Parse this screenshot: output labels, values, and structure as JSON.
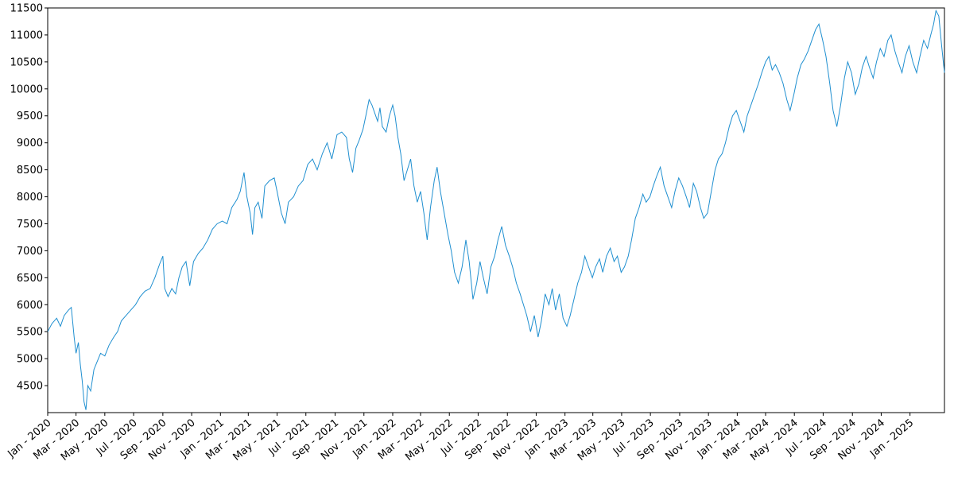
{
  "chart_data": {
    "type": "line",
    "title": "",
    "xlabel": "",
    "ylabel": "",
    "x_range": [
      "2020-01-01",
      "2025-03-15"
    ],
    "ylim": [
      4000,
      11500
    ],
    "y_ticks": [
      4500,
      5000,
      5500,
      6000,
      6500,
      7000,
      7500,
      8000,
      8500,
      9000,
      9500,
      10000,
      10500,
      11000,
      11500
    ],
    "x_ticks": [
      {
        "date": "2020-01-01",
        "label": "Jan - 2020"
      },
      {
        "date": "2020-03-01",
        "label": "Mar - 2020"
      },
      {
        "date": "2020-05-01",
        "label": "May - 2020"
      },
      {
        "date": "2020-07-01",
        "label": "Jul - 2020"
      },
      {
        "date": "2020-09-01",
        "label": "Sep - 2020"
      },
      {
        "date": "2020-11-01",
        "label": "Nov - 2020"
      },
      {
        "date": "2021-01-01",
        "label": "Jan - 2021"
      },
      {
        "date": "2021-03-01",
        "label": "Mar - 2021"
      },
      {
        "date": "2021-05-01",
        "label": "May - 2021"
      },
      {
        "date": "2021-07-01",
        "label": "Jul - 2021"
      },
      {
        "date": "2021-09-01",
        "label": "Sep - 2021"
      },
      {
        "date": "2021-11-01",
        "label": "Nov - 2021"
      },
      {
        "date": "2022-01-01",
        "label": "Jan - 2022"
      },
      {
        "date": "2022-03-01",
        "label": "Mar - 2022"
      },
      {
        "date": "2022-05-01",
        "label": "May - 2022"
      },
      {
        "date": "2022-07-01",
        "label": "Jul - 2022"
      },
      {
        "date": "2022-09-01",
        "label": "Sep - 2022"
      },
      {
        "date": "2022-11-01",
        "label": "Nov - 2022"
      },
      {
        "date": "2023-01-01",
        "label": "Jan - 2023"
      },
      {
        "date": "2023-03-01",
        "label": "Mar - 2023"
      },
      {
        "date": "2023-05-01",
        "label": "May - 2023"
      },
      {
        "date": "2023-07-01",
        "label": "Jul - 2023"
      },
      {
        "date": "2023-09-01",
        "label": "Sep - 2023"
      },
      {
        "date": "2023-11-01",
        "label": "Nov - 2023"
      },
      {
        "date": "2024-01-01",
        "label": "Jan - 2024"
      },
      {
        "date": "2024-03-01",
        "label": "Mar - 2024"
      },
      {
        "date": "2024-05-01",
        "label": "May - 2024"
      },
      {
        "date": "2024-07-01",
        "label": "Jul - 2024"
      },
      {
        "date": "2024-09-01",
        "label": "Sep - 2024"
      },
      {
        "date": "2024-11-01",
        "label": "Nov - 2024"
      },
      {
        "date": "2025-01-01",
        "label": "Jan - 2025"
      }
    ],
    "grid": false,
    "legend": "none",
    "line_color": "#1f8fd0",
    "series": [
      {
        "points": [
          [
            "2020-01-01",
            5500
          ],
          [
            "2020-01-10",
            5650
          ],
          [
            "2020-01-20",
            5750
          ],
          [
            "2020-01-28",
            5600
          ],
          [
            "2020-02-05",
            5800
          ],
          [
            "2020-02-14",
            5900
          ],
          [
            "2020-02-20",
            5950
          ],
          [
            "2020-02-26",
            5400
          ],
          [
            "2020-03-01",
            5100
          ],
          [
            "2020-03-06",
            5300
          ],
          [
            "2020-03-10",
            4900
          ],
          [
            "2020-03-14",
            4600
          ],
          [
            "2020-03-18",
            4200
          ],
          [
            "2020-03-22",
            4050
          ],
          [
            "2020-03-26",
            4500
          ],
          [
            "2020-04-01",
            4400
          ],
          [
            "2020-04-08",
            4800
          ],
          [
            "2020-04-15",
            4950
          ],
          [
            "2020-04-22",
            5100
          ],
          [
            "2020-05-01",
            5050
          ],
          [
            "2020-05-10",
            5250
          ],
          [
            "2020-05-20",
            5400
          ],
          [
            "2020-05-28",
            5500
          ],
          [
            "2020-06-05",
            5700
          ],
          [
            "2020-06-15",
            5800
          ],
          [
            "2020-06-25",
            5900
          ],
          [
            "2020-07-05",
            6000
          ],
          [
            "2020-07-15",
            6150
          ],
          [
            "2020-07-25",
            6250
          ],
          [
            "2020-08-05",
            6300
          ],
          [
            "2020-08-15",
            6500
          ],
          [
            "2020-08-25",
            6750
          ],
          [
            "2020-09-01",
            6900
          ],
          [
            "2020-09-05",
            6300
          ],
          [
            "2020-09-12",
            6150
          ],
          [
            "2020-09-20",
            6300
          ],
          [
            "2020-09-28",
            6200
          ],
          [
            "2020-10-05",
            6500
          ],
          [
            "2020-10-12",
            6700
          ],
          [
            "2020-10-20",
            6800
          ],
          [
            "2020-10-28",
            6350
          ],
          [
            "2020-11-05",
            6800
          ],
          [
            "2020-11-15",
            6950
          ],
          [
            "2020-11-25",
            7050
          ],
          [
            "2020-12-05",
            7200
          ],
          [
            "2020-12-15",
            7400
          ],
          [
            "2020-12-25",
            7500
          ],
          [
            "2021-01-05",
            7550
          ],
          [
            "2021-01-15",
            7500
          ],
          [
            "2021-01-25",
            7800
          ],
          [
            "2021-02-05",
            7950
          ],
          [
            "2021-02-12",
            8100
          ],
          [
            "2021-02-20",
            8450
          ],
          [
            "2021-02-26",
            8000
          ],
          [
            "2021-03-05",
            7700
          ],
          [
            "2021-03-10",
            7300
          ],
          [
            "2021-03-15",
            7800
          ],
          [
            "2021-03-22",
            7900
          ],
          [
            "2021-03-30",
            7600
          ],
          [
            "2021-04-05",
            8200
          ],
          [
            "2021-04-15",
            8300
          ],
          [
            "2021-04-25",
            8350
          ],
          [
            "2021-05-01",
            8100
          ],
          [
            "2021-05-10",
            7700
          ],
          [
            "2021-05-18",
            7500
          ],
          [
            "2021-05-25",
            7900
          ],
          [
            "2021-06-05",
            8000
          ],
          [
            "2021-06-15",
            8200
          ],
          [
            "2021-06-25",
            8300
          ],
          [
            "2021-07-05",
            8600
          ],
          [
            "2021-07-15",
            8700
          ],
          [
            "2021-07-25",
            8500
          ],
          [
            "2021-08-05",
            8800
          ],
          [
            "2021-08-15",
            9000
          ],
          [
            "2021-08-25",
            8700
          ],
          [
            "2021-09-05",
            9150
          ],
          [
            "2021-09-15",
            9200
          ],
          [
            "2021-09-25",
            9100
          ],
          [
            "2021-10-01",
            8700
          ],
          [
            "2021-10-08",
            8450
          ],
          [
            "2021-10-15",
            8900
          ],
          [
            "2021-10-22",
            9050
          ],
          [
            "2021-10-30",
            9250
          ],
          [
            "2021-11-05",
            9500
          ],
          [
            "2021-11-12",
            9800
          ],
          [
            "2021-11-18",
            9700
          ],
          [
            "2021-11-24",
            9550
          ],
          [
            "2021-11-30",
            9400
          ],
          [
            "2021-12-05",
            9650
          ],
          [
            "2021-12-10",
            9300
          ],
          [
            "2021-12-18",
            9200
          ],
          [
            "2021-12-25",
            9500
          ],
          [
            "2022-01-01",
            9700
          ],
          [
            "2022-01-06",
            9500
          ],
          [
            "2022-01-12",
            9100
          ],
          [
            "2022-01-18",
            8800
          ],
          [
            "2022-01-25",
            8300
          ],
          [
            "2022-02-01",
            8500
          ],
          [
            "2022-02-08",
            8700
          ],
          [
            "2022-02-15",
            8200
          ],
          [
            "2022-02-22",
            7900
          ],
          [
            "2022-03-01",
            8100
          ],
          [
            "2022-03-08",
            7700
          ],
          [
            "2022-03-15",
            7200
          ],
          [
            "2022-03-22",
            7800
          ],
          [
            "2022-03-30",
            8300
          ],
          [
            "2022-04-05",
            8550
          ],
          [
            "2022-04-12",
            8100
          ],
          [
            "2022-04-20",
            7700
          ],
          [
            "2022-04-28",
            7300
          ],
          [
            "2022-05-05",
            7000
          ],
          [
            "2022-05-12",
            6600
          ],
          [
            "2022-05-20",
            6400
          ],
          [
            "2022-05-28",
            6700
          ],
          [
            "2022-06-05",
            7200
          ],
          [
            "2022-06-12",
            6800
          ],
          [
            "2022-06-20",
            6100
          ],
          [
            "2022-06-28",
            6400
          ],
          [
            "2022-07-05",
            6800
          ],
          [
            "2022-07-12",
            6500
          ],
          [
            "2022-07-20",
            6200
          ],
          [
            "2022-07-28",
            6700
          ],
          [
            "2022-08-05",
            6900
          ],
          [
            "2022-08-12",
            7200
          ],
          [
            "2022-08-20",
            7450
          ],
          [
            "2022-08-28",
            7100
          ],
          [
            "2022-09-05",
            6900
          ],
          [
            "2022-09-12",
            6700
          ],
          [
            "2022-09-20",
            6400
          ],
          [
            "2022-09-28",
            6200
          ],
          [
            "2022-10-05",
            6000
          ],
          [
            "2022-10-12",
            5800
          ],
          [
            "2022-10-20",
            5500
          ],
          [
            "2022-10-28",
            5800
          ],
          [
            "2022-11-05",
            5400
          ],
          [
            "2022-11-12",
            5700
          ],
          [
            "2022-11-20",
            6200
          ],
          [
            "2022-11-28",
            6000
          ],
          [
            "2022-12-05",
            6300
          ],
          [
            "2022-12-12",
            5900
          ],
          [
            "2022-12-20",
            6200
          ],
          [
            "2022-12-28",
            5750
          ],
          [
            "2023-01-05",
            5600
          ],
          [
            "2023-01-12",
            5800
          ],
          [
            "2023-01-20",
            6100
          ],
          [
            "2023-01-28",
            6400
          ],
          [
            "2023-02-05",
            6600
          ],
          [
            "2023-02-12",
            6900
          ],
          [
            "2023-02-20",
            6700
          ],
          [
            "2023-02-28",
            6500
          ],
          [
            "2023-03-07",
            6700
          ],
          [
            "2023-03-15",
            6850
          ],
          [
            "2023-03-22",
            6600
          ],
          [
            "2023-03-30",
            6900
          ],
          [
            "2023-04-07",
            7050
          ],
          [
            "2023-04-15",
            6800
          ],
          [
            "2023-04-22",
            6900
          ],
          [
            "2023-04-30",
            6600
          ],
          [
            "2023-05-07",
            6700
          ],
          [
            "2023-05-15",
            6900
          ],
          [
            "2023-05-22",
            7200
          ],
          [
            "2023-05-30",
            7600
          ],
          [
            "2023-06-07",
            7800
          ],
          [
            "2023-06-15",
            8050
          ],
          [
            "2023-06-22",
            7900
          ],
          [
            "2023-06-30",
            8000
          ],
          [
            "2023-07-07",
            8200
          ],
          [
            "2023-07-15",
            8400
          ],
          [
            "2023-07-22",
            8550
          ],
          [
            "2023-07-30",
            8200
          ],
          [
            "2023-08-07",
            8000
          ],
          [
            "2023-08-15",
            7800
          ],
          [
            "2023-08-22",
            8100
          ],
          [
            "2023-08-30",
            8350
          ],
          [
            "2023-09-07",
            8200
          ],
          [
            "2023-09-15",
            8000
          ],
          [
            "2023-09-22",
            7800
          ],
          [
            "2023-09-30",
            8250
          ],
          [
            "2023-10-07",
            8100
          ],
          [
            "2023-10-15",
            7800
          ],
          [
            "2023-10-22",
            7600
          ],
          [
            "2023-10-30",
            7700
          ],
          [
            "2023-11-07",
            8100
          ],
          [
            "2023-11-15",
            8500
          ],
          [
            "2023-11-22",
            8700
          ],
          [
            "2023-11-30",
            8800
          ],
          [
            "2023-12-07",
            9000
          ],
          [
            "2023-12-15",
            9300
          ],
          [
            "2023-12-22",
            9500
          ],
          [
            "2023-12-30",
            9600
          ],
          [
            "2024-01-07",
            9400
          ],
          [
            "2024-01-15",
            9200
          ],
          [
            "2024-01-22",
            9500
          ],
          [
            "2024-01-30",
            9700
          ],
          [
            "2024-02-07",
            9900
          ],
          [
            "2024-02-15",
            10100
          ],
          [
            "2024-02-22",
            10300
          ],
          [
            "2024-03-01",
            10500
          ],
          [
            "2024-03-08",
            10600
          ],
          [
            "2024-03-15",
            10350
          ],
          [
            "2024-03-22",
            10450
          ],
          [
            "2024-03-30",
            10300
          ],
          [
            "2024-04-07",
            10100
          ],
          [
            "2024-04-15",
            9800
          ],
          [
            "2024-04-22",
            9600
          ],
          [
            "2024-04-30",
            9900
          ],
          [
            "2024-05-07",
            10200
          ],
          [
            "2024-05-15",
            10450
          ],
          [
            "2024-05-22",
            10550
          ],
          [
            "2024-05-30",
            10700
          ],
          [
            "2024-06-07",
            10900
          ],
          [
            "2024-06-15",
            11100
          ],
          [
            "2024-06-22",
            11200
          ],
          [
            "2024-06-30",
            10900
          ],
          [
            "2024-07-07",
            10600
          ],
          [
            "2024-07-15",
            10100
          ],
          [
            "2024-07-22",
            9600
          ],
          [
            "2024-07-30",
            9300
          ],
          [
            "2024-08-07",
            9700
          ],
          [
            "2024-08-15",
            10200
          ],
          [
            "2024-08-22",
            10500
          ],
          [
            "2024-08-30",
            10300
          ],
          [
            "2024-09-07",
            9900
          ],
          [
            "2024-09-15",
            10100
          ],
          [
            "2024-09-22",
            10400
          ],
          [
            "2024-09-30",
            10600
          ],
          [
            "2024-10-07",
            10400
          ],
          [
            "2024-10-15",
            10200
          ],
          [
            "2024-10-22",
            10500
          ],
          [
            "2024-10-30",
            10750
          ],
          [
            "2024-11-07",
            10600
          ],
          [
            "2024-11-15",
            10900
          ],
          [
            "2024-11-22",
            11000
          ],
          [
            "2024-11-30",
            10700
          ],
          [
            "2024-12-07",
            10500
          ],
          [
            "2024-12-15",
            10300
          ],
          [
            "2024-12-22",
            10600
          ],
          [
            "2024-12-30",
            10800
          ],
          [
            "2025-01-07",
            10500
          ],
          [
            "2025-01-15",
            10300
          ],
          [
            "2025-01-22",
            10600
          ],
          [
            "2025-01-30",
            10900
          ],
          [
            "2025-02-07",
            10750
          ],
          [
            "2025-02-14",
            11000
          ],
          [
            "2025-02-20",
            11200
          ],
          [
            "2025-02-25",
            11450
          ],
          [
            "2025-03-03",
            11350
          ],
          [
            "2025-03-09",
            10800
          ],
          [
            "2025-03-15",
            10300
          ]
        ]
      }
    ]
  }
}
